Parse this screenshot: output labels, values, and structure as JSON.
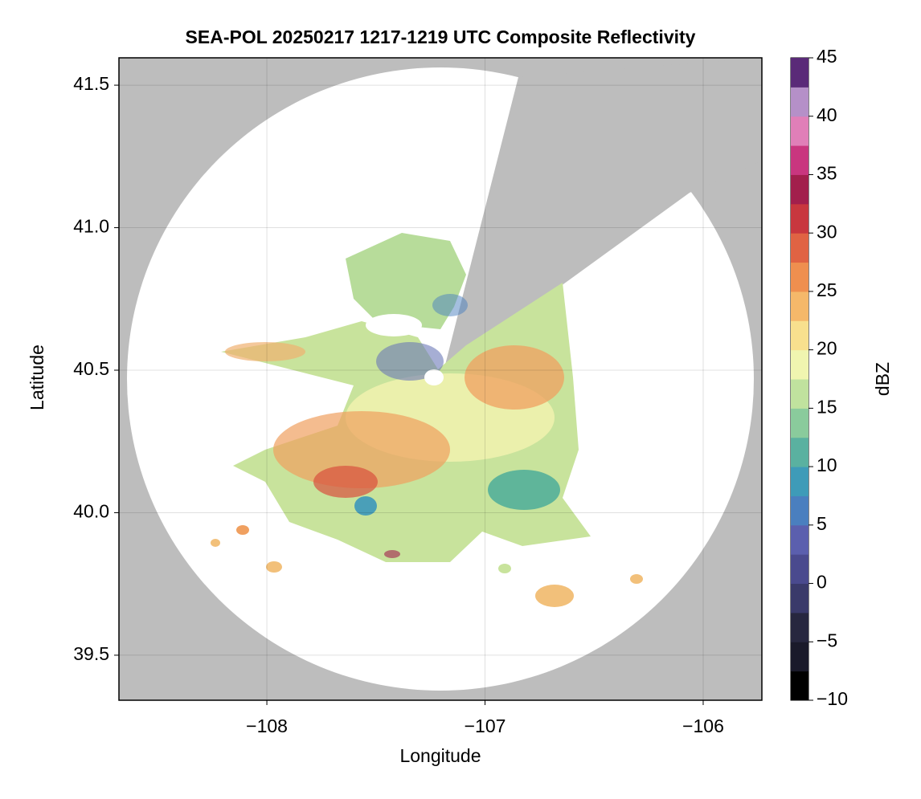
{
  "chart_data": {
    "type": "radar-map",
    "title": "SEA-POL 20250217 1217-1219 UTC Composite Reflectivity",
    "x_label": "Longitude",
    "y_label": "Latitude",
    "xlim": [
      -108.678,
      -105.731
    ],
    "ylim": [
      39.342,
      41.596
    ],
    "xticks": [
      {
        "value": -108,
        "label": "−108"
      },
      {
        "value": -107,
        "label": "−107"
      },
      {
        "value": -106,
        "label": "−106"
      }
    ],
    "yticks": [
      39.5,
      {
        "value": 40,
        "label": "40.0"
      },
      40.5,
      {
        "value": 41,
        "label": "41.0"
      },
      41.5
    ],
    "grid": true,
    "colorbar": {
      "label": "dBZ",
      "lim": [
        -10,
        45
      ],
      "ticks": [
        {
          "value": -10,
          "label": "−10"
        },
        {
          "value": -5,
          "label": "−5"
        },
        0,
        5,
        10,
        15,
        20,
        25,
        30,
        35,
        40,
        45
      ],
      "colors": [
        "#000000",
        "#1a1a2a",
        "#27273f",
        "#3a3a6a",
        "#4a4a8e",
        "#5b5fae",
        "#4a7fbf",
        "#3e9bb8",
        "#5ab1a0",
        "#8acb9c",
        "#c0e29e",
        "#f0f5b0",
        "#f8e08e",
        "#f5b86a",
        "#ef8f4f",
        "#e06343",
        "#c8373e",
        "#a21f4c",
        "#c9367f",
        "#e07fb8",
        "#b590c8",
        "#5a2a78"
      ]
    }
  }
}
